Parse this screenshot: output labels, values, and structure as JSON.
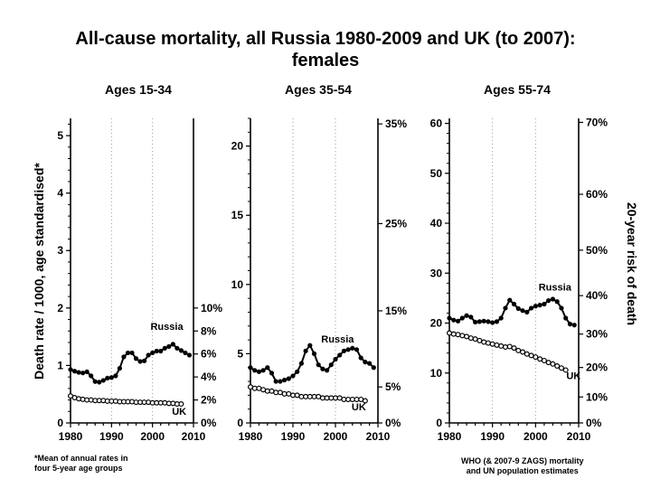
{
  "title_line1": "All-cause mortality, all Russia 1980-2009 and UK (to 2007):",
  "title_line2": "females",
  "ylabel_left": "Death rate / 1000, age standardised*",
  "ylabel_right": "20-year risk of death",
  "footnote_left": [
    "*Mean of annual rates in",
    "four 5-year age groups"
  ],
  "footnote_right": [
    "WHO (& 2007-9 ZAGS) mortality",
    "and UN population estimates"
  ],
  "colors": {
    "line": "#000000",
    "grid": "#999999",
    "marker_fill": "#ffffff"
  },
  "chart_data": [
    {
      "type": "line",
      "title": "Ages 15-34",
      "xlim": [
        1980,
        2010
      ],
      "xticks": [
        "1980",
        "1990",
        "2000",
        "2010"
      ],
      "ylim": [
        0,
        5.3
      ],
      "yticks": [
        "0",
        "1",
        "2",
        "3",
        "4",
        "5"
      ],
      "ytick_values": [
        0,
        1,
        2,
        3,
        4,
        5
      ],
      "right_axis": {
        "ticks": [
          "0%",
          "2%",
          "4%",
          "6%",
          "8%",
          "10%"
        ],
        "values": [
          0,
          0.4,
          0.8,
          1.2,
          1.6,
          2.0
        ]
      },
      "grid_x": [
        1990,
        2000
      ],
      "series": [
        {
          "name": "Russia",
          "marker": "filled",
          "x": [
            1980,
            1981,
            1982,
            1983,
            1984,
            1985,
            1986,
            1987,
            1988,
            1989,
            1990,
            1991,
            1992,
            1993,
            1994,
            1995,
            1996,
            1997,
            1998,
            1999,
            2000,
            2001,
            2002,
            2003,
            2004,
            2005,
            2006,
            2007,
            2008,
            2009
          ],
          "y": [
            0.93,
            0.9,
            0.88,
            0.87,
            0.89,
            0.82,
            0.72,
            0.71,
            0.74,
            0.78,
            0.79,
            0.82,
            0.95,
            1.15,
            1.22,
            1.22,
            1.12,
            1.07,
            1.08,
            1.18,
            1.22,
            1.25,
            1.25,
            1.3,
            1.33,
            1.37,
            1.3,
            1.26,
            1.22,
            1.18
          ]
        },
        {
          "name": "UK",
          "marker": "open",
          "x": [
            1980,
            1981,
            1982,
            1983,
            1984,
            1985,
            1986,
            1987,
            1988,
            1989,
            1990,
            1991,
            1992,
            1993,
            1994,
            1995,
            1996,
            1997,
            1998,
            1999,
            2000,
            2001,
            2002,
            2003,
            2004,
            2005,
            2006,
            2007
          ],
          "y": [
            0.47,
            0.44,
            0.42,
            0.41,
            0.4,
            0.4,
            0.39,
            0.39,
            0.39,
            0.38,
            0.38,
            0.38,
            0.37,
            0.37,
            0.37,
            0.37,
            0.36,
            0.36,
            0.36,
            0.36,
            0.35,
            0.35,
            0.35,
            0.35,
            0.34,
            0.34,
            0.33,
            0.33
          ]
        }
      ],
      "labels": [
        {
          "text": "Russia",
          "x": 2003.5,
          "y": 1.62
        },
        {
          "text": "UK",
          "x": 2006.5,
          "y": 0.14
        }
      ]
    },
    {
      "type": "line",
      "title": "Ages 35-54",
      "xlim": [
        1980,
        2010
      ],
      "xticks": [
        "1980",
        "1990",
        "2000",
        "2010"
      ],
      "ylim": [
        0,
        22
      ],
      "yticks": [
        "0",
        "5",
        "10",
        "15",
        "20"
      ],
      "ytick_values": [
        0,
        5,
        10,
        15,
        20
      ],
      "right_axis": {
        "ticks": [
          "0%",
          "5%",
          "15%",
          "25%",
          "35%"
        ],
        "values": [
          0,
          2.6,
          8.1,
          14.4,
          21.6
        ]
      },
      "grid_x": [
        1990,
        2000
      ],
      "series": [
        {
          "name": "Russia",
          "marker": "filled",
          "x": [
            1980,
            1981,
            1982,
            1983,
            1984,
            1985,
            1986,
            1987,
            1988,
            1989,
            1990,
            1991,
            1992,
            1993,
            1994,
            1995,
            1996,
            1997,
            1998,
            1999,
            2000,
            2001,
            2002,
            2003,
            2004,
            2005,
            2006,
            2007,
            2008,
            2009
          ],
          "y": [
            4.0,
            3.8,
            3.7,
            3.8,
            4.0,
            3.6,
            3.0,
            3.0,
            3.1,
            3.2,
            3.4,
            3.7,
            4.3,
            5.2,
            5.6,
            5.0,
            4.2,
            3.9,
            3.8,
            4.2,
            4.6,
            4.9,
            5.2,
            5.3,
            5.4,
            5.3,
            4.7,
            4.4,
            4.3,
            4.0
          ]
        },
        {
          "name": "UK",
          "marker": "open",
          "x": [
            1980,
            1981,
            1982,
            1983,
            1984,
            1985,
            1986,
            1987,
            1988,
            1989,
            1990,
            1991,
            1992,
            1993,
            1994,
            1995,
            1996,
            1997,
            1998,
            1999,
            2000,
            2001,
            2002,
            2003,
            2004,
            2005,
            2006,
            2007
          ],
          "y": [
            2.6,
            2.5,
            2.5,
            2.4,
            2.3,
            2.3,
            2.2,
            2.2,
            2.1,
            2.1,
            2.0,
            2.0,
            1.9,
            1.9,
            1.9,
            1.9,
            1.9,
            1.8,
            1.8,
            1.8,
            1.8,
            1.8,
            1.7,
            1.7,
            1.7,
            1.7,
            1.7,
            1.6
          ]
        }
      ],
      "labels": [
        {
          "text": "Russia",
          "x": 2000.5,
          "y": 5.8
        },
        {
          "text": "UK",
          "x": 2005.5,
          "y": 0.9
        }
      ]
    },
    {
      "type": "line",
      "title": "Ages 55-74",
      "xlim": [
        1980,
        2010
      ],
      "xticks": [
        "1980",
        "1990",
        "2000",
        "2010"
      ],
      "ylim": [
        0,
        61
      ],
      "yticks": [
        "0",
        "10",
        "20",
        "30",
        "40",
        "50",
        "60"
      ],
      "ytick_values": [
        0,
        10,
        20,
        30,
        40,
        50,
        60
      ],
      "right_axis": {
        "ticks": [
          "0%",
          "10%",
          "20%",
          "30%",
          "40%",
          "50%",
          "60%",
          "70%"
        ],
        "values": [
          0,
          5.2,
          11.1,
          17.8,
          25.5,
          34.6,
          45.8,
          60.2
        ]
      },
      "grid_x": [
        1990,
        2000
      ],
      "series": [
        {
          "name": "Russia",
          "marker": "filled",
          "x": [
            1980,
            1981,
            1982,
            1983,
            1984,
            1985,
            1986,
            1987,
            1988,
            1989,
            1990,
            1991,
            1992,
            1993,
            1994,
            1995,
            1996,
            1997,
            1998,
            1999,
            2000,
            2001,
            2002,
            2003,
            2004,
            2005,
            2006,
            2007,
            2008,
            2009
          ],
          "y": [
            21.0,
            20.6,
            20.4,
            21.0,
            21.5,
            21.2,
            20.2,
            20.3,
            20.4,
            20.3,
            20.1,
            20.3,
            21.0,
            23.0,
            24.6,
            23.8,
            22.9,
            22.5,
            22.2,
            23.0,
            23.4,
            23.6,
            23.8,
            24.5,
            24.8,
            24.3,
            23.0,
            21.0,
            19.8,
            19.6
          ]
        },
        {
          "name": "UK",
          "marker": "open",
          "x": [
            1980,
            1981,
            1982,
            1983,
            1984,
            1985,
            1986,
            1987,
            1988,
            1989,
            1990,
            1991,
            1992,
            1993,
            1994,
            1995,
            1996,
            1997,
            1998,
            1999,
            2000,
            2001,
            2002,
            2003,
            2004,
            2005,
            2006,
            2007
          ],
          "y": [
            18.0,
            17.8,
            17.7,
            17.5,
            17.3,
            17.0,
            16.8,
            16.5,
            16.2,
            16.0,
            15.8,
            15.6,
            15.4,
            15.2,
            15.3,
            15.0,
            14.5,
            14.2,
            13.8,
            13.5,
            13.2,
            12.8,
            12.5,
            12.1,
            11.8,
            11.4,
            11.0,
            10.6
          ]
        }
      ],
      "labels": [
        {
          "text": "Russia",
          "x": 2004.5,
          "y": 26.5
        },
        {
          "text": "UK",
          "x": 2008.8,
          "y": 8.8
        }
      ]
    }
  ]
}
